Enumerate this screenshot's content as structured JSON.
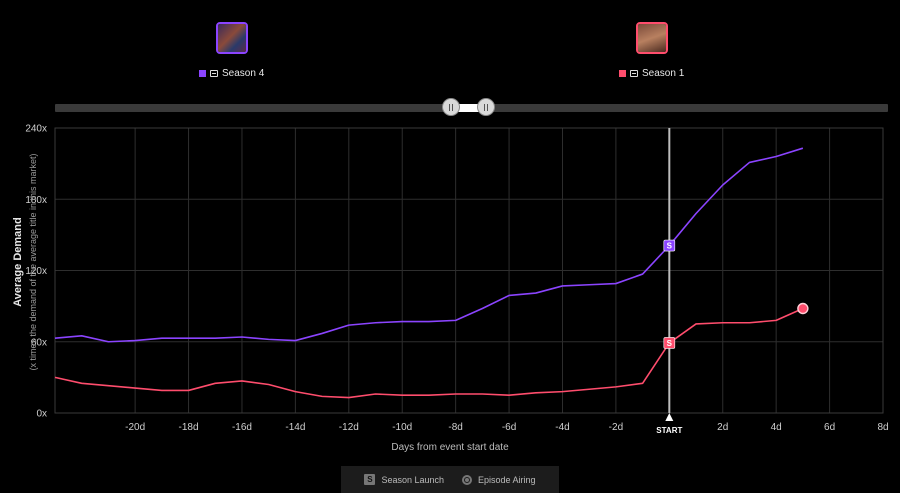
{
  "legend": {
    "season4": {
      "label": "Season 4",
      "color": "#8b44ff"
    },
    "season1": {
      "label": "Season 1",
      "color": "#ff4d6d"
    }
  },
  "chart_data": {
    "type": "line",
    "ylabel": "Average Demand",
    "ysublabel": "(x times the demand of the average title in this market)",
    "xlabel": "Days from event start date",
    "ylim": [
      0,
      240
    ],
    "xlim": [
      -23,
      8
    ],
    "yticks": [
      {
        "v": 0,
        "label": "0x"
      },
      {
        "v": 60,
        "label": "60x"
      },
      {
        "v": 120,
        "label": "120x"
      },
      {
        "v": 180,
        "label": "180x"
      },
      {
        "v": 240,
        "label": "240x"
      }
    ],
    "xticks": [
      {
        "v": -20,
        "label": "-20d"
      },
      {
        "v": -18,
        "label": "-18d"
      },
      {
        "v": -16,
        "label": "-16d"
      },
      {
        "v": -14,
        "label": "-14d"
      },
      {
        "v": -12,
        "label": "-12d"
      },
      {
        "v": -10,
        "label": "-10d"
      },
      {
        "v": -8,
        "label": "-8d"
      },
      {
        "v": -6,
        "label": "-6d"
      },
      {
        "v": -4,
        "label": "-4d"
      },
      {
        "v": -2,
        "label": "-2d"
      },
      {
        "v": 2,
        "label": "2d"
      },
      {
        "v": 4,
        "label": "4d"
      },
      {
        "v": 6,
        "label": "6d"
      },
      {
        "v": 8,
        "label": "8d"
      }
    ],
    "start_label": "START",
    "grid": true,
    "series": [
      {
        "name": "Season 4",
        "color": "#8b44ff",
        "x": [
          -23,
          -22,
          -21,
          -20,
          -19,
          -18,
          -17,
          -16,
          -15,
          -14,
          -13,
          -12,
          -11,
          -10,
          -9,
          -8,
          -7,
          -6,
          -5,
          -4,
          -3,
          -2,
          -1,
          0,
          1,
          2,
          3,
          4,
          5
        ],
        "y": [
          63,
          65,
          60,
          61,
          63,
          63,
          63,
          64,
          62,
          61,
          67,
          74,
          76,
          77,
          77,
          78,
          88,
          99,
          101,
          107,
          108,
          109,
          117,
          141,
          168,
          192,
          211,
          216,
          223
        ],
        "launch_marker": {
          "x": 0,
          "y": 141,
          "text": "S"
        }
      },
      {
        "name": "Season 1",
        "color": "#ff4d6d",
        "x": [
          -23,
          -22,
          -21,
          -20,
          -19,
          -18,
          -17,
          -16,
          -15,
          -14,
          -13,
          -12,
          -11,
          -10,
          -9,
          -8,
          -7,
          -6,
          -5,
          -4,
          -3,
          -2,
          -1,
          0,
          1,
          2,
          3,
          4,
          5
        ],
        "y": [
          30,
          25,
          23,
          21,
          19,
          19,
          25,
          27,
          24,
          18,
          14,
          13,
          16,
          15,
          15,
          16,
          16,
          15,
          17,
          18,
          20,
          22,
          25,
          59,
          75,
          76,
          76,
          78,
          88
        ],
        "launch_marker": {
          "x": 0,
          "y": 59,
          "text": "S"
        },
        "airing_marker": {
          "x": 5,
          "y": 88
        }
      }
    ]
  },
  "bottom_legend": {
    "season_launch": "Season Launch",
    "season_launch_glyph": "S",
    "episode_airing": "Episode Airing"
  },
  "slider": {
    "left_handle": 0.475,
    "right_handle": 0.517
  }
}
